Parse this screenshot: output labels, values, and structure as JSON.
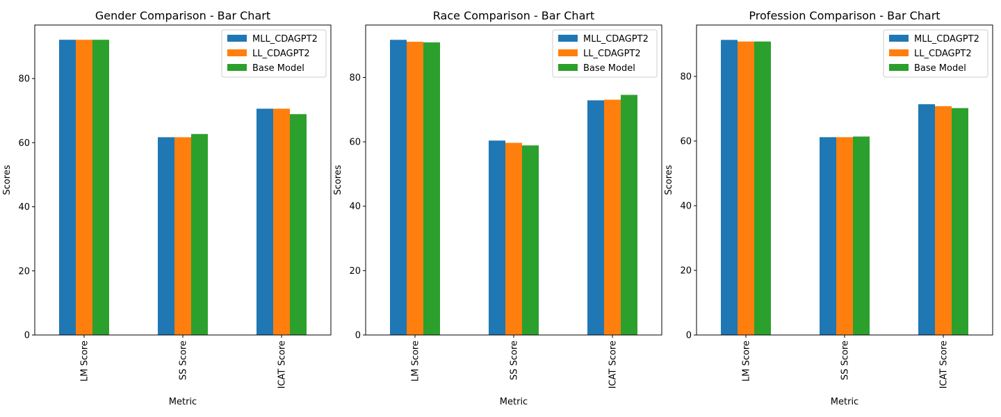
{
  "figure": {
    "colors": {
      "MLL_CDAGPT2": "#1f77b4",
      "LL_CDAGPT2": "#ff7f0e",
      "Base Model": "#2ca02c"
    }
  },
  "chart_data": [
    {
      "type": "bar",
      "title": "Gender Comparison - Bar Chart",
      "xlabel": "Metric",
      "ylabel": "Scores",
      "categories": [
        "LM Score",
        "SS Score",
        "ICAT Score"
      ],
      "series": [
        {
          "name": "MLL_CDAGPT2",
          "values": [
            92.1,
            61.7,
            70.6
          ]
        },
        {
          "name": "LL_CDAGPT2",
          "values": [
            92.1,
            61.7,
            70.6
          ]
        },
        {
          "name": "Base Model",
          "values": [
            92.1,
            62.7,
            68.9
          ]
        }
      ],
      "ylim": [
        0,
        96.7
      ],
      "yticks": [
        0,
        20,
        40,
        60,
        80
      ],
      "legend": "top-right",
      "grid": false
    },
    {
      "type": "bar",
      "title": "Race Comparison - Bar Chart",
      "xlabel": "Metric",
      "ylabel": "Scores",
      "categories": [
        "LM Score",
        "SS Score",
        "ICAT Score"
      ],
      "series": [
        {
          "name": "MLL_CDAGPT2",
          "values": [
            91.7,
            60.4,
            72.9
          ]
        },
        {
          "name": "LL_CDAGPT2",
          "values": [
            91.1,
            59.7,
            73.1
          ]
        },
        {
          "name": "Base Model",
          "values": [
            90.9,
            58.9,
            74.6
          ]
        }
      ],
      "ylim": [
        0,
        96.3
      ],
      "yticks": [
        0,
        20,
        40,
        60,
        80
      ],
      "legend": "top-right",
      "grid": false
    },
    {
      "type": "bar",
      "title": "Profession Comparison - Bar Chart",
      "xlabel": "Metric",
      "ylabel": "Scores",
      "categories": [
        "LM Score",
        "SS Score",
        "ICAT Score"
      ],
      "series": [
        {
          "name": "MLL_CDAGPT2",
          "values": [
            91.3,
            61.2,
            71.4
          ]
        },
        {
          "name": "LL_CDAGPT2",
          "values": [
            90.8,
            61.2,
            70.8
          ]
        },
        {
          "name": "Base Model",
          "values": [
            90.8,
            61.4,
            70.2
          ]
        }
      ],
      "ylim": [
        0,
        95.9
      ],
      "yticks": [
        0,
        20,
        40,
        60,
        80
      ],
      "legend": "top-right",
      "grid": false
    }
  ]
}
